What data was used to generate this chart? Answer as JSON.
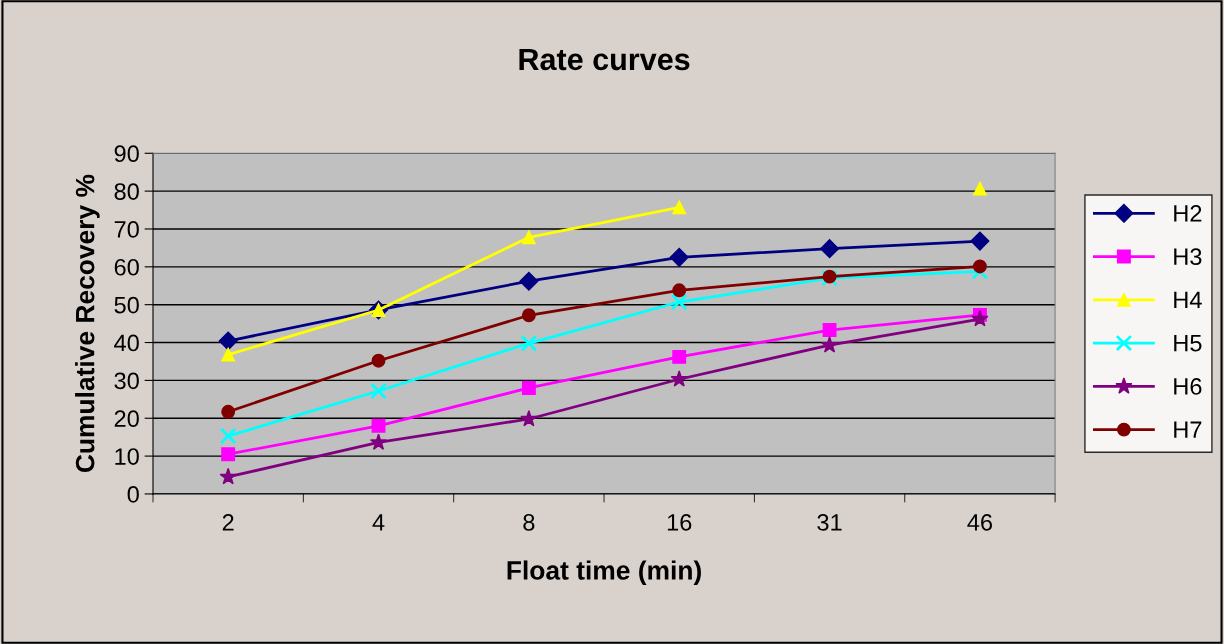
{
  "chart_data": {
    "type": "line",
    "title": "Rate curves",
    "xlabel": "Float time (min)",
    "ylabel": "Cumulative Recovery %",
    "categories": [
      "2",
      "4",
      "8",
      "16",
      "31",
      "46"
    ],
    "series": [
      {
        "name": "H2",
        "color": "#000080",
        "marker": "diamond",
        "values": [
          40.4,
          48.6,
          56.2,
          62.5,
          64.8,
          66.8
        ]
      },
      {
        "name": "H3",
        "color": "#ff00ff",
        "marker": "square",
        "values": [
          10.5,
          18,
          28,
          36.2,
          43.3,
          47.3
        ]
      },
      {
        "name": "H4",
        "color": "#ffff00",
        "marker": "triangle",
        "values": [
          36.8,
          48.6,
          67.8,
          75.7,
          null,
          80.7
        ]
      },
      {
        "name": "H5",
        "color": "#00ffff",
        "marker": "cross",
        "values": [
          15.3,
          27.2,
          39.8,
          50.7,
          57,
          58.8
        ]
      },
      {
        "name": "H6",
        "color": "#800080",
        "marker": "star",
        "values": [
          4.5,
          13.6,
          19.8,
          30.3,
          39.3,
          46.2
        ]
      },
      {
        "name": "H7",
        "color": "#800000",
        "marker": "circle",
        "values": [
          21.7,
          35.2,
          47.2,
          53.8,
          57.4,
          60.1
        ]
      }
    ],
    "ylim": [
      0,
      90
    ],
    "yticks": [
      0,
      10,
      20,
      30,
      40,
      50,
      60,
      70,
      80,
      90
    ],
    "grid": "y",
    "legend": "right",
    "line_style": "solid"
  }
}
